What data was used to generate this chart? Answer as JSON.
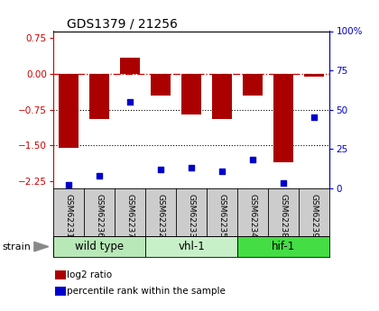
{
  "title": "GDS1379 / 21256",
  "samples": [
    "GSM62231",
    "GSM62236",
    "GSM62237",
    "GSM62232",
    "GSM62233",
    "GSM62235",
    "GSM62234",
    "GSM62238",
    "GSM62239"
  ],
  "log2_ratio": [
    -1.55,
    -0.95,
    0.35,
    -0.45,
    -0.85,
    -0.95,
    -0.45,
    -1.85,
    -0.05
  ],
  "percentile_rank": [
    2,
    8,
    55,
    12,
    13,
    11,
    18,
    3,
    45
  ],
  "groups": [
    {
      "label": "wild type",
      "start": 0,
      "end": 3,
      "color": "#b8e8b8"
    },
    {
      "label": "vhl-1",
      "start": 3,
      "end": 6,
      "color": "#c8f0c8"
    },
    {
      "label": "hif-1",
      "start": 6,
      "end": 9,
      "color": "#44dd44"
    }
  ],
  "ylim_left": [
    -2.4,
    0.9
  ],
  "ylim_right": [
    0,
    100
  ],
  "yticks_left": [
    -2.25,
    -1.5,
    -0.75,
    0.0,
    0.75
  ],
  "yticks_right": [
    0,
    25,
    50,
    75,
    100
  ],
  "dotted_lines": [
    -0.75,
    -1.5
  ],
  "bar_color": "#aa0000",
  "dot_color": "#0000cc",
  "bg_color": "#ffffff",
  "label_bg": "#cccccc",
  "legend_items": [
    {
      "label": "log2 ratio",
      "color": "#aa0000"
    },
    {
      "label": "percentile rank within the sample",
      "color": "#0000cc"
    }
  ],
  "group_dividers": [
    3,
    6
  ]
}
